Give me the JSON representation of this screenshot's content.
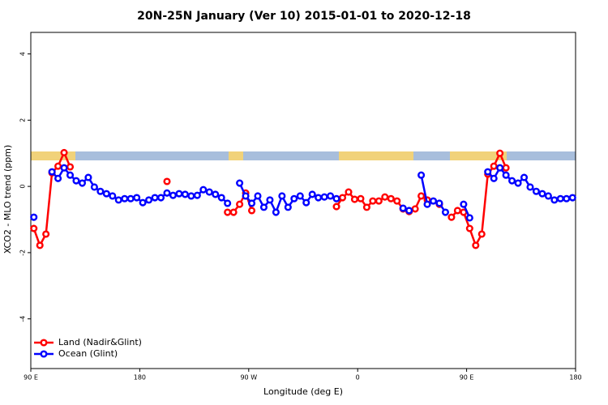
{
  "chart_data": {
    "type": "line",
    "title": "20N-25N January (Ver 10)   2015-01-01 to 2020-12-18",
    "x_label": "Longitude (deg E)",
    "y_label": "XCO2 - MLO trend (ppm)",
    "xlim": [
      90,
      540
    ],
    "ylim": [
      -5.5,
      4.65
    ],
    "xticks": [
      {
        "value": 90,
        "label": "90 E"
      },
      180,
      {
        "value": 270,
        "label": "90 W"
      },
      {
        "value": 360,
        "label": "0"
      },
      {
        "value": 450,
        "label": "90 E"
      },
      {
        "value": 540,
        "label": "180"
      }
    ],
    "yticks": [
      -4,
      -2,
      0,
      2,
      4
    ],
    "legend": "bottom-left",
    "x": [
      92.5,
      97.5,
      102.5,
      107.5,
      112.5,
      117.5,
      122.5,
      127.5,
      132.5,
      137.5,
      142.5,
      147.5,
      152.5,
      157.5,
      162.5,
      167.5,
      172.5,
      177.5,
      182.5,
      187.5,
      192.5,
      197.5,
      202.5,
      207.5,
      212.5,
      217.5,
      222.5,
      227.5,
      232.5,
      237.5,
      242.5,
      247.5,
      252.5,
      257.5,
      262.5,
      267.5,
      272.5,
      277.5,
      282.5,
      287.5,
      292.5,
      297.5,
      302.5,
      307.5,
      312.5,
      317.5,
      322.5,
      327.5,
      332.5,
      337.5,
      342.5,
      347.5,
      352.5,
      357.5,
      362.5,
      367.5,
      372.5,
      377.5,
      382.5,
      387.5,
      392.5,
      397.5,
      402.5,
      407.5,
      412.5,
      417.5,
      422.5,
      427.5,
      432.5,
      437.5,
      442.5,
      447.5,
      452.5,
      457.5,
      462.5,
      467.5,
      472.5,
      477.5,
      482.5,
      487.5,
      492.5,
      497.5,
      502.5,
      507.5,
      512.5,
      517.5,
      522.5,
      527.5,
      532.5,
      537.5
    ],
    "series": [
      {
        "name": "Land (Nadir&Glint)",
        "color": "#ff0000",
        "values": [
          -1.27,
          -1.78,
          -1.44,
          0.41,
          0.61,
          1.02,
          0.59,
          null,
          null,
          null,
          null,
          null,
          null,
          null,
          null,
          null,
          null,
          null,
          null,
          null,
          null,
          null,
          0.15,
          null,
          null,
          null,
          null,
          null,
          null,
          null,
          null,
          null,
          -0.78,
          -0.78,
          -0.54,
          -0.2,
          -0.73,
          null,
          null,
          null,
          null,
          null,
          null,
          null,
          null,
          null,
          null,
          null,
          null,
          null,
          -0.61,
          -0.34,
          -0.17,
          -0.39,
          -0.37,
          -0.63,
          -0.44,
          -0.44,
          -0.32,
          -0.37,
          -0.44,
          -0.68,
          -0.76,
          -0.68,
          -0.29,
          -0.41,
          null,
          -0.54,
          null,
          -0.93,
          -0.73,
          -0.78,
          -1.27,
          -1.78,
          -1.44,
          0.37,
          0.61,
          1.0,
          0.56,
          null,
          null,
          null,
          null,
          null,
          null,
          null,
          null,
          null,
          null,
          null
        ]
      },
      {
        "name": "Ocean (Glint)",
        "color": "#0000ff",
        "values": [
          -0.93,
          null,
          null,
          0.44,
          0.24,
          0.56,
          0.34,
          0.17,
          0.1,
          0.27,
          -0.02,
          -0.15,
          -0.22,
          -0.29,
          -0.41,
          -0.37,
          -0.37,
          -0.34,
          -0.49,
          -0.41,
          -0.34,
          -0.34,
          -0.2,
          -0.27,
          -0.22,
          -0.24,
          -0.29,
          -0.27,
          -0.1,
          -0.17,
          -0.24,
          -0.34,
          -0.51,
          null,
          0.1,
          -0.29,
          -0.51,
          -0.29,
          -0.63,
          -0.41,
          -0.78,
          -0.29,
          -0.63,
          -0.37,
          -0.29,
          -0.49,
          -0.24,
          -0.34,
          -0.32,
          -0.29,
          -0.37,
          null,
          null,
          null,
          null,
          null,
          null,
          null,
          null,
          null,
          null,
          -0.66,
          -0.73,
          null,
          0.34,
          -0.54,
          -0.44,
          -0.51,
          -0.78,
          null,
          null,
          -0.54,
          -0.95,
          null,
          null,
          0.44,
          0.24,
          0.56,
          0.34,
          0.17,
          0.1,
          0.27,
          -0.02,
          -0.15,
          -0.22,
          -0.29,
          -0.41,
          -0.37,
          -0.37,
          -0.34
        ]
      }
    ]
  }
}
